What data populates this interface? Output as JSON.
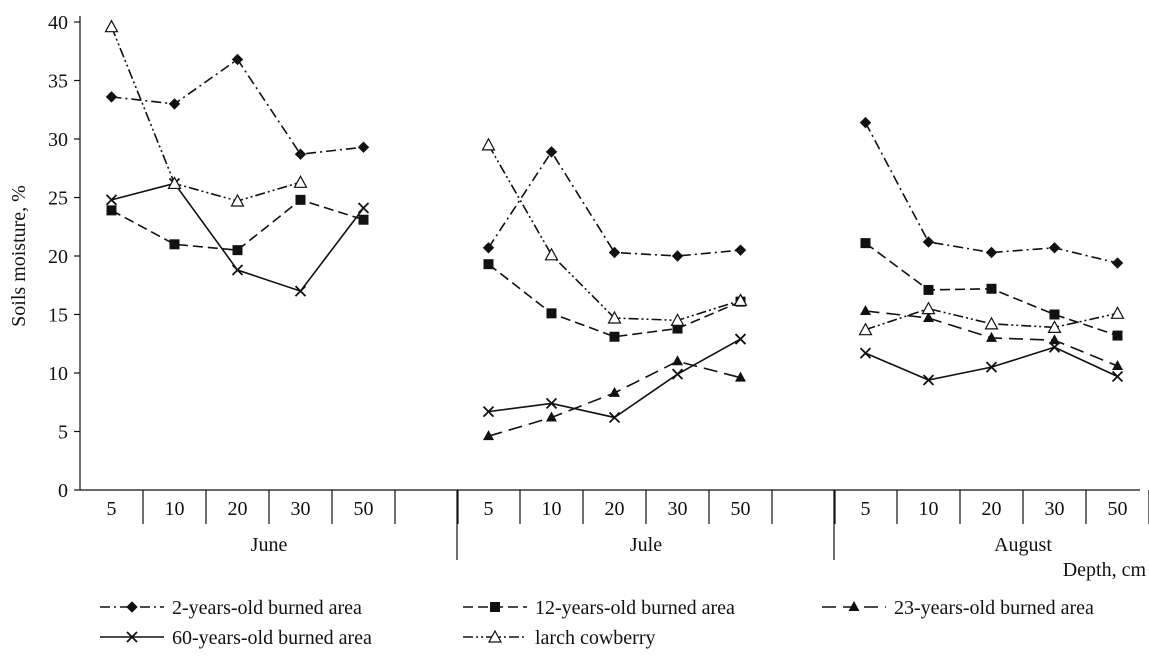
{
  "chart_data": {
    "type": "line",
    "ylabel": "Soils moisture, %",
    "xlabel": "Depth, cm",
    "ylim": [
      0,
      40
    ],
    "yticks": [
      0,
      5,
      10,
      15,
      20,
      25,
      30,
      35,
      40
    ],
    "groups": [
      {
        "label": "June",
        "depths": [
          "5",
          "10",
          "20",
          "30",
          "50"
        ]
      },
      {
        "label": "Jule",
        "depths": [
          "5",
          "10",
          "20",
          "30",
          "50"
        ]
      },
      {
        "label": "August",
        "depths": [
          "5",
          "10",
          "20",
          "30",
          "50"
        ]
      }
    ],
    "series": [
      {
        "name": "2-years-old burned area",
        "color": "#111111",
        "dash": "dash-dot",
        "marker": "diamond",
        "values": [
          [
            33.6,
            33.0,
            36.8,
            28.7,
            29.3
          ],
          [
            20.7,
            28.9,
            20.3,
            20.0,
            20.5
          ],
          [
            31.4,
            21.2,
            20.3,
            20.7,
            19.4
          ]
        ]
      },
      {
        "name": "12-years-old burned area",
        "color": "#111111",
        "dash": "dashed",
        "marker": "square",
        "values": [
          [
            23.9,
            21.0,
            20.5,
            24.8,
            23.1
          ],
          [
            19.3,
            15.1,
            13.1,
            13.8,
            16.1
          ],
          [
            21.1,
            17.1,
            17.2,
            15.0,
            13.2
          ]
        ]
      },
      {
        "name": "23-years-old burned area",
        "color": "#111111",
        "dash": "long-dash",
        "marker": "triangle",
        "values": [
          null,
          [
            4.6,
            6.2,
            8.3,
            11.0,
            9.6
          ],
          [
            15.3,
            14.7,
            13.0,
            12.8,
            10.6
          ]
        ]
      },
      {
        "name": "60-years-old burned area",
        "color": "#111111",
        "dash": "solid",
        "marker": "cross",
        "values": [
          [
            24.8,
            26.2,
            18.8,
            17.0,
            24.1
          ],
          [
            6.7,
            7.4,
            6.2,
            9.9,
            12.9
          ],
          [
            11.7,
            9.4,
            10.5,
            12.2,
            9.7
          ]
        ]
      },
      {
        "name": "larch cowberry",
        "color": "#111111",
        "dash": "dash-dot-dot",
        "marker": "open-triangle",
        "values": [
          [
            39.6,
            26.2,
            24.7,
            26.3,
            null
          ],
          [
            29.5,
            20.1,
            14.7,
            14.5,
            16.2
          ],
          [
            13.7,
            15.5,
            14.2,
            13.9,
            15.1
          ]
        ]
      }
    ],
    "legend_position": "bottom"
  }
}
